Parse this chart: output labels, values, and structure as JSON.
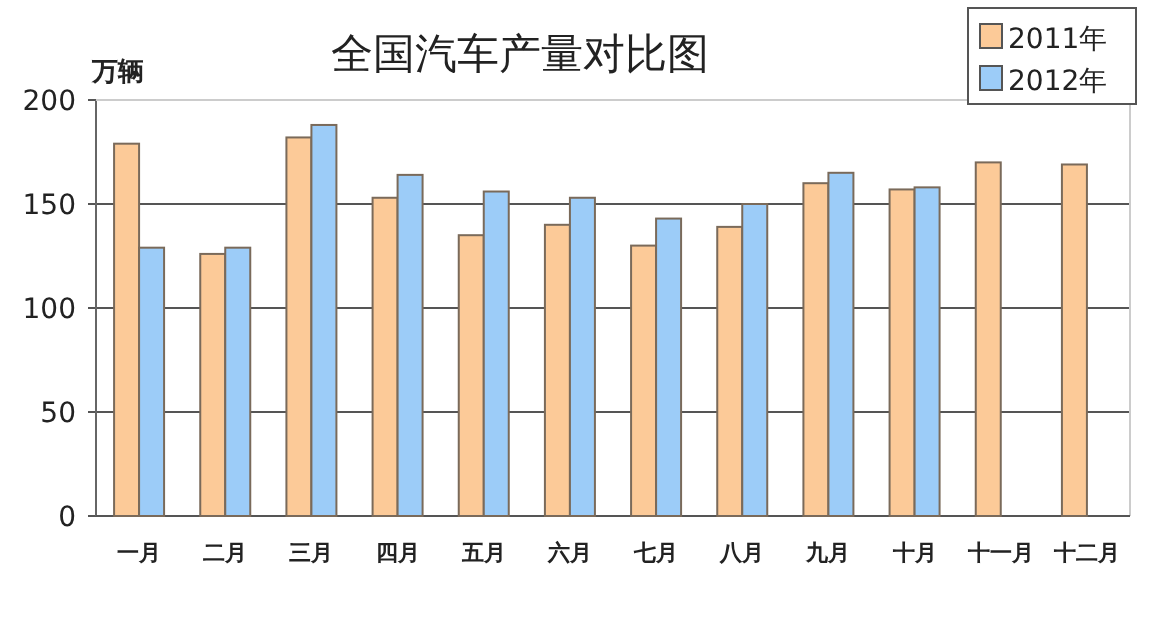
{
  "chart_data": {
    "type": "bar",
    "title": "全国汽车产量对比图",
    "ylabel": "万辆",
    "categories": [
      "一月",
      "二月",
      "三月",
      "四月",
      "五月",
      "六月",
      "七月",
      "八月",
      "九月",
      "十月",
      "十一月",
      "十二月"
    ],
    "series": [
      {
        "name": "2011年",
        "color": "#fcca98",
        "values": [
          179,
          126,
          182,
          153,
          135,
          140,
          130,
          139,
          160,
          157,
          170,
          169
        ]
      },
      {
        "name": "2012年",
        "color": "#9cccf8",
        "values": [
          129,
          129,
          188,
          164,
          156,
          153,
          143,
          150,
          165,
          158,
          null,
          null
        ]
      }
    ],
    "ylim": [
      0,
      200
    ],
    "yticks": [
      0,
      50,
      100,
      150,
      200
    ],
    "grid": "y",
    "legend": "top right"
  }
}
